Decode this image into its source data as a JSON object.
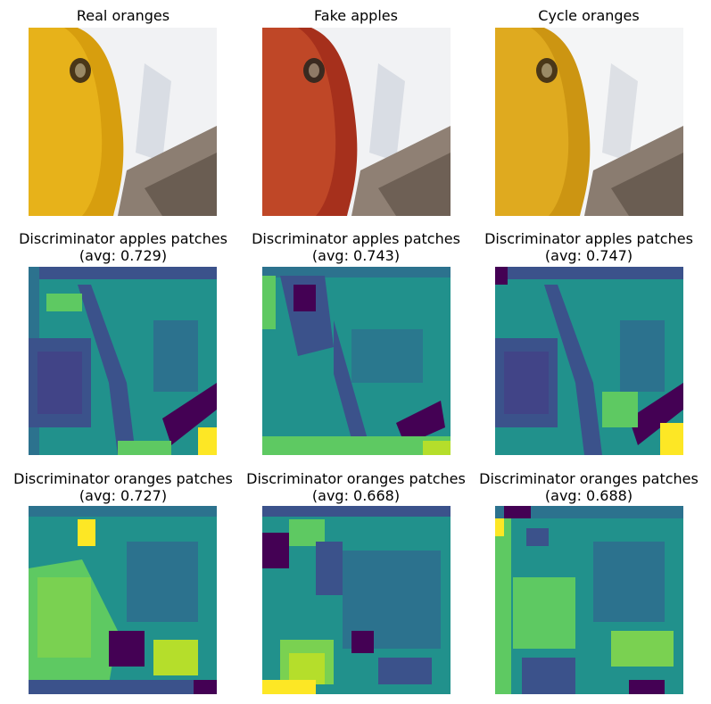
{
  "row1": [
    {
      "title": "Real oranges"
    },
    {
      "title": "Fake apples"
    },
    {
      "title": "Cycle oranges"
    }
  ],
  "row2": [
    {
      "title": "Discriminator apples patches",
      "avg": "(avg: 0.729)"
    },
    {
      "title": "Discriminator apples patches",
      "avg": "(avg: 0.743)"
    },
    {
      "title": "Discriminator apples patches",
      "avg": "(avg: 0.747)"
    }
  ],
  "row3": [
    {
      "title": "Discriminator oranges patches",
      "avg": "(avg: 0.727)"
    },
    {
      "title": "Discriminator oranges patches",
      "avg": "(avg: 0.668)"
    },
    {
      "title": "Discriminator oranges patches",
      "avg": "(avg: 0.688)"
    }
  ],
  "colors": {
    "viridis_dark": "#440154",
    "viridis_blue": "#3b528b",
    "viridis_teal": "#21918c",
    "viridis_green": "#5ec962",
    "viridis_yellow": "#fde725",
    "orange": "#e9a40e",
    "apple_red": "#b8381e"
  }
}
